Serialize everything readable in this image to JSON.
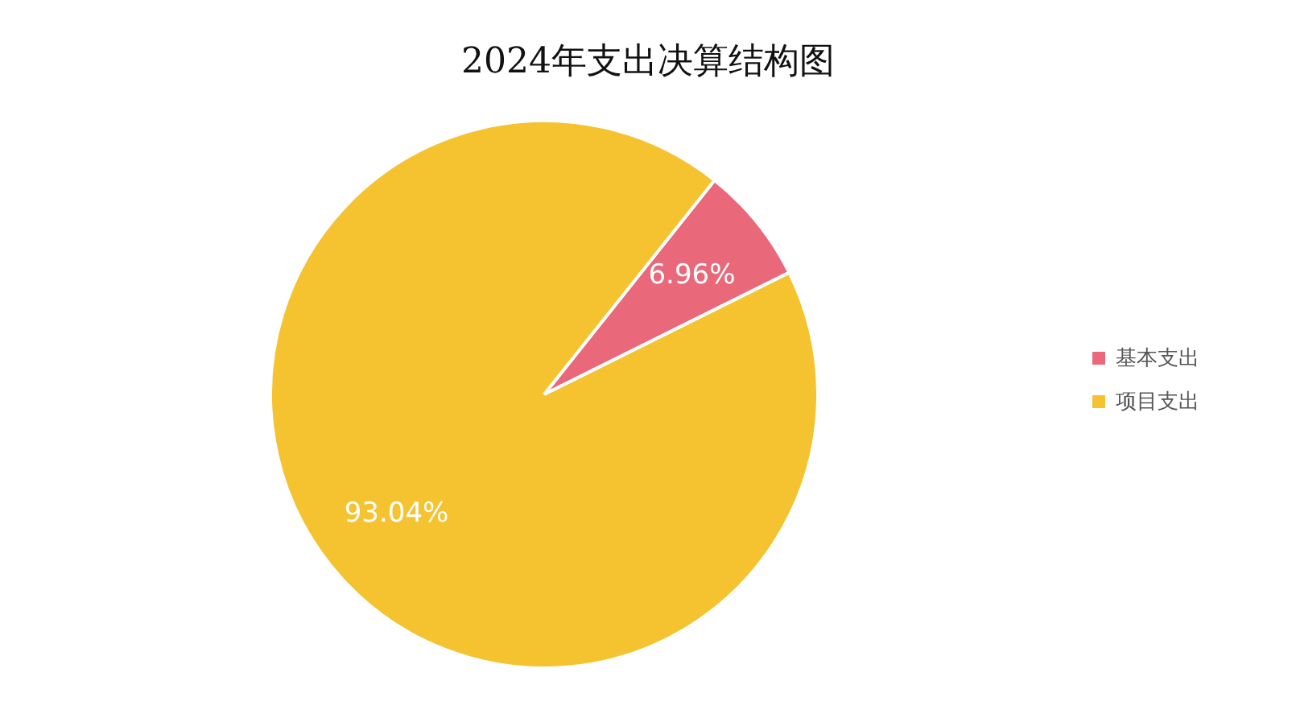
{
  "chart_data": {
    "type": "pie",
    "title": "2024年支出决算结构图",
    "categories": [
      "基本支出",
      "项目支出"
    ],
    "values": [
      6.96,
      93.04
    ],
    "colors": [
      "#e9687a",
      "#f5c330"
    ],
    "value_labels": [
      "6.96%",
      "93.04%"
    ],
    "legend": "right"
  }
}
